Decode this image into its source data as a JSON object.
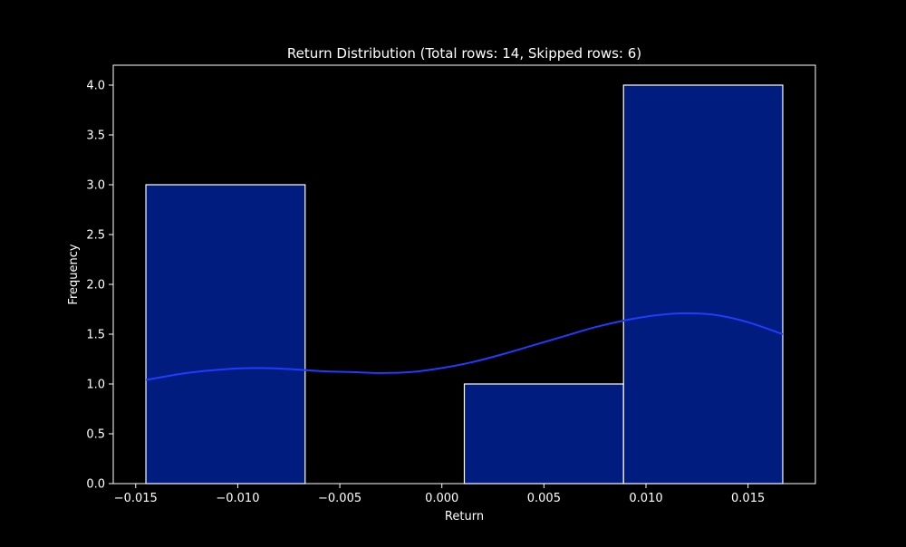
{
  "chart_data": {
    "type": "histogram",
    "title": "Return Distribution (Total rows: 14, Skipped rows: 6)",
    "xlabel": "Return",
    "ylabel": "Frequency",
    "xlim": [
      -0.0161,
      0.0183
    ],
    "ylim": [
      0,
      4.2
    ],
    "x_ticks": [
      -0.015,
      -0.01,
      -0.005,
      0.0,
      0.005,
      0.01,
      0.015
    ],
    "x_tick_labels": [
      "−0.015",
      "−0.010",
      "−0.005",
      "0.000",
      "0.005",
      "0.010",
      "0.015"
    ],
    "y_ticks": [
      0,
      0.5,
      1.0,
      1.5,
      2.0,
      2.5,
      3.0,
      3.5,
      4.0
    ],
    "y_tick_labels": [
      "0.0",
      "0.5",
      "1.0",
      "1.5",
      "2.0",
      "2.5",
      "3.0",
      "3.5",
      "4.0"
    ],
    "bins": [
      {
        "x0": -0.0145,
        "x1": -0.0067,
        "count": 3
      },
      {
        "x0": -0.0067,
        "x1": 0.0011,
        "count": 0
      },
      {
        "x0": 0.0011,
        "x1": 0.0089,
        "count": 1
      },
      {
        "x0": 0.0089,
        "x1": 0.0167,
        "count": 4
      }
    ],
    "kde": {
      "x": [
        -0.0145,
        -0.0125,
        -0.0105,
        -0.009,
        -0.0075,
        -0.006,
        -0.0045,
        -0.003,
        -0.0015,
        0.0,
        0.0015,
        0.003,
        0.0045,
        0.006,
        0.0075,
        0.009,
        0.0105,
        0.012,
        0.0135,
        0.015,
        0.0167
      ],
      "y": [
        1.04,
        1.11,
        1.15,
        1.16,
        1.15,
        1.13,
        1.12,
        1.11,
        1.12,
        1.16,
        1.22,
        1.3,
        1.39,
        1.48,
        1.57,
        1.64,
        1.69,
        1.71,
        1.69,
        1.62,
        1.5
      ]
    },
    "grid": false,
    "colors": {
      "background": "#000000",
      "bar_fill": "#001c7f",
      "bar_edge": "#ffffff",
      "kde_line": "#1f3cff",
      "axes": "#ffffff",
      "text": "#ffffff"
    }
  }
}
